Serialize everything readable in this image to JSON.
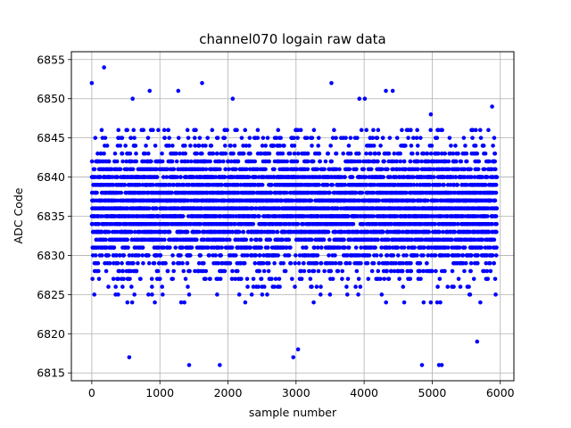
{
  "chart_data": {
    "type": "scatter",
    "title": "channel070 logain raw data",
    "xlabel": "sample number",
    "ylabel": "ADC Code",
    "xlim": [
      -300,
      6200
    ],
    "ylim": [
      6814,
      6856
    ],
    "xticks": [
      0,
      1000,
      2000,
      3000,
      4000,
      5000,
      6000
    ],
    "yticks": [
      6815,
      6820,
      6825,
      6830,
      6835,
      6840,
      6845,
      6850,
      6855
    ],
    "grid": true,
    "marker_color": "#0000ff",
    "series": [
      {
        "n_samples": 5950,
        "sample_step": 1,
        "typical_range": [
          6824,
          6846
        ],
        "center": 6836,
        "outliers": [
          {
            "x": 0,
            "y": 6852
          },
          {
            "x": 180,
            "y": 6854
          },
          {
            "x": 600,
            "y": 6850
          },
          {
            "x": 850,
            "y": 6851
          },
          {
            "x": 1270,
            "y": 6851
          },
          {
            "x": 1620,
            "y": 6852
          },
          {
            "x": 2070,
            "y": 6850
          },
          {
            "x": 3520,
            "y": 6852
          },
          {
            "x": 3930,
            "y": 6850
          },
          {
            "x": 4010,
            "y": 6850
          },
          {
            "x": 4320,
            "y": 6851
          },
          {
            "x": 4420,
            "y": 6851
          },
          {
            "x": 550,
            "y": 6817
          },
          {
            "x": 1430,
            "y": 6816
          },
          {
            "x": 1880,
            "y": 6816
          },
          {
            "x": 2960,
            "y": 6817
          },
          {
            "x": 3030,
            "y": 6818
          },
          {
            "x": 4850,
            "y": 6816
          },
          {
            "x": 5100,
            "y": 6816
          },
          {
            "x": 5140,
            "y": 6816
          },
          {
            "x": 5660,
            "y": 6819
          },
          {
            "x": 4780,
            "y": 6846
          },
          {
            "x": 4980,
            "y": 6848
          },
          {
            "x": 5880,
            "y": 6849
          }
        ]
      }
    ]
  }
}
